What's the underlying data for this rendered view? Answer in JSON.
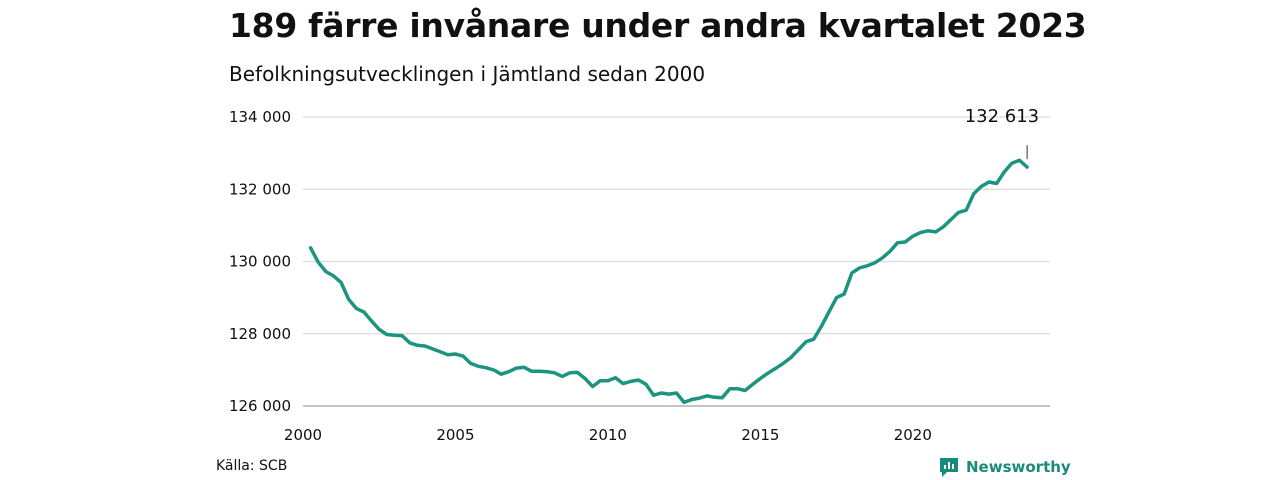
{
  "title": "189 färre invånare under andra kvartalet 2023",
  "subtitle": "Befolkningsutvecklingen i Jämtland sedan 2000",
  "source": "Källa: SCB",
  "brand": {
    "name": "Newsworthy",
    "icon": "newsworthy-logo-icon",
    "color": "#1a8a7a"
  },
  "chart_data": {
    "type": "line",
    "x_axis": {
      "min": 2000,
      "max": 2024.5,
      "ticks": [
        2000,
        2005,
        2010,
        2015,
        2020
      ],
      "tick_labels": [
        "2000",
        "2005",
        "2010",
        "2015",
        "2020"
      ]
    },
    "y_axis": {
      "min": 126000,
      "max": 134000,
      "ticks": [
        126000,
        128000,
        130000,
        132000,
        134000
      ],
      "tick_labels": [
        "126 000",
        "128 000",
        "130 000",
        "132 000",
        "134 000"
      ]
    },
    "grid": true,
    "series": [
      {
        "color": "#1b9480",
        "points": [
          [
            2000.25,
            130380
          ],
          [
            2000.5,
            129980
          ],
          [
            2000.75,
            129720
          ],
          [
            2001.0,
            129600
          ],
          [
            2001.25,
            129420
          ],
          [
            2001.5,
            128950
          ],
          [
            2001.75,
            128700
          ],
          [
            2002.0,
            128600
          ],
          [
            2002.25,
            128350
          ],
          [
            2002.5,
            128120
          ],
          [
            2002.75,
            127980
          ],
          [
            2003.0,
            127960
          ],
          [
            2003.25,
            127950
          ],
          [
            2003.5,
            127750
          ],
          [
            2003.75,
            127680
          ],
          [
            2004.0,
            127660
          ],
          [
            2004.25,
            127580
          ],
          [
            2004.5,
            127500
          ],
          [
            2004.75,
            127420
          ],
          [
            2005.0,
            127440
          ],
          [
            2005.25,
            127380
          ],
          [
            2005.5,
            127180
          ],
          [
            2005.75,
            127100
          ],
          [
            2006.0,
            127060
          ],
          [
            2006.25,
            127000
          ],
          [
            2006.5,
            126880
          ],
          [
            2006.75,
            126950
          ],
          [
            2007.0,
            127050
          ],
          [
            2007.25,
            127070
          ],
          [
            2007.5,
            126960
          ],
          [
            2007.75,
            126960
          ],
          [
            2008.0,
            126950
          ],
          [
            2008.25,
            126920
          ],
          [
            2008.5,
            126820
          ],
          [
            2008.75,
            126920
          ],
          [
            2009.0,
            126930
          ],
          [
            2009.25,
            126760
          ],
          [
            2009.5,
            126540
          ],
          [
            2009.75,
            126700
          ],
          [
            2010.0,
            126700
          ],
          [
            2010.25,
            126780
          ],
          [
            2010.5,
            126620
          ],
          [
            2010.75,
            126680
          ],
          [
            2011.0,
            126720
          ],
          [
            2011.25,
            126600
          ],
          [
            2011.5,
            126300
          ],
          [
            2011.75,
            126360
          ],
          [
            2012.0,
            126330
          ],
          [
            2012.25,
            126360
          ],
          [
            2012.5,
            126100
          ],
          [
            2012.75,
            126180
          ],
          [
            2013.0,
            126220
          ],
          [
            2013.25,
            126280
          ],
          [
            2013.5,
            126240
          ],
          [
            2013.75,
            126230
          ],
          [
            2014.0,
            126480
          ],
          [
            2014.25,
            126480
          ],
          [
            2014.5,
            126430
          ],
          [
            2014.75,
            126600
          ],
          [
            2015.0,
            126760
          ],
          [
            2015.25,
            126910
          ],
          [
            2015.5,
            127040
          ],
          [
            2015.75,
            127180
          ],
          [
            2016.0,
            127340
          ],
          [
            2016.25,
            127560
          ],
          [
            2016.5,
            127780
          ],
          [
            2016.75,
            127850
          ],
          [
            2017.0,
            128200
          ],
          [
            2017.25,
            128600
          ],
          [
            2017.5,
            129000
          ],
          [
            2017.75,
            129100
          ],
          [
            2018.0,
            129680
          ],
          [
            2018.25,
            129820
          ],
          [
            2018.5,
            129880
          ],
          [
            2018.75,
            129960
          ],
          [
            2019.0,
            130100
          ],
          [
            2019.25,
            130280
          ],
          [
            2019.5,
            130520
          ],
          [
            2019.75,
            130540
          ],
          [
            2020.0,
            130700
          ],
          [
            2020.25,
            130800
          ],
          [
            2020.5,
            130850
          ],
          [
            2020.75,
            130820
          ],
          [
            2021.0,
            130960
          ],
          [
            2021.25,
            131160
          ],
          [
            2021.5,
            131360
          ],
          [
            2021.75,
            131420
          ],
          [
            2022.0,
            131880
          ],
          [
            2022.25,
            132080
          ],
          [
            2022.5,
            132200
          ],
          [
            2022.75,
            132160
          ],
          [
            2023.0,
            132480
          ],
          [
            2023.25,
            132720
          ],
          [
            2023.5,
            132802
          ],
          [
            2023.75,
            132613
          ]
        ]
      }
    ],
    "annotations": [
      {
        "text": "132 613",
        "x": 2023.75,
        "y": 132613
      }
    ]
  }
}
